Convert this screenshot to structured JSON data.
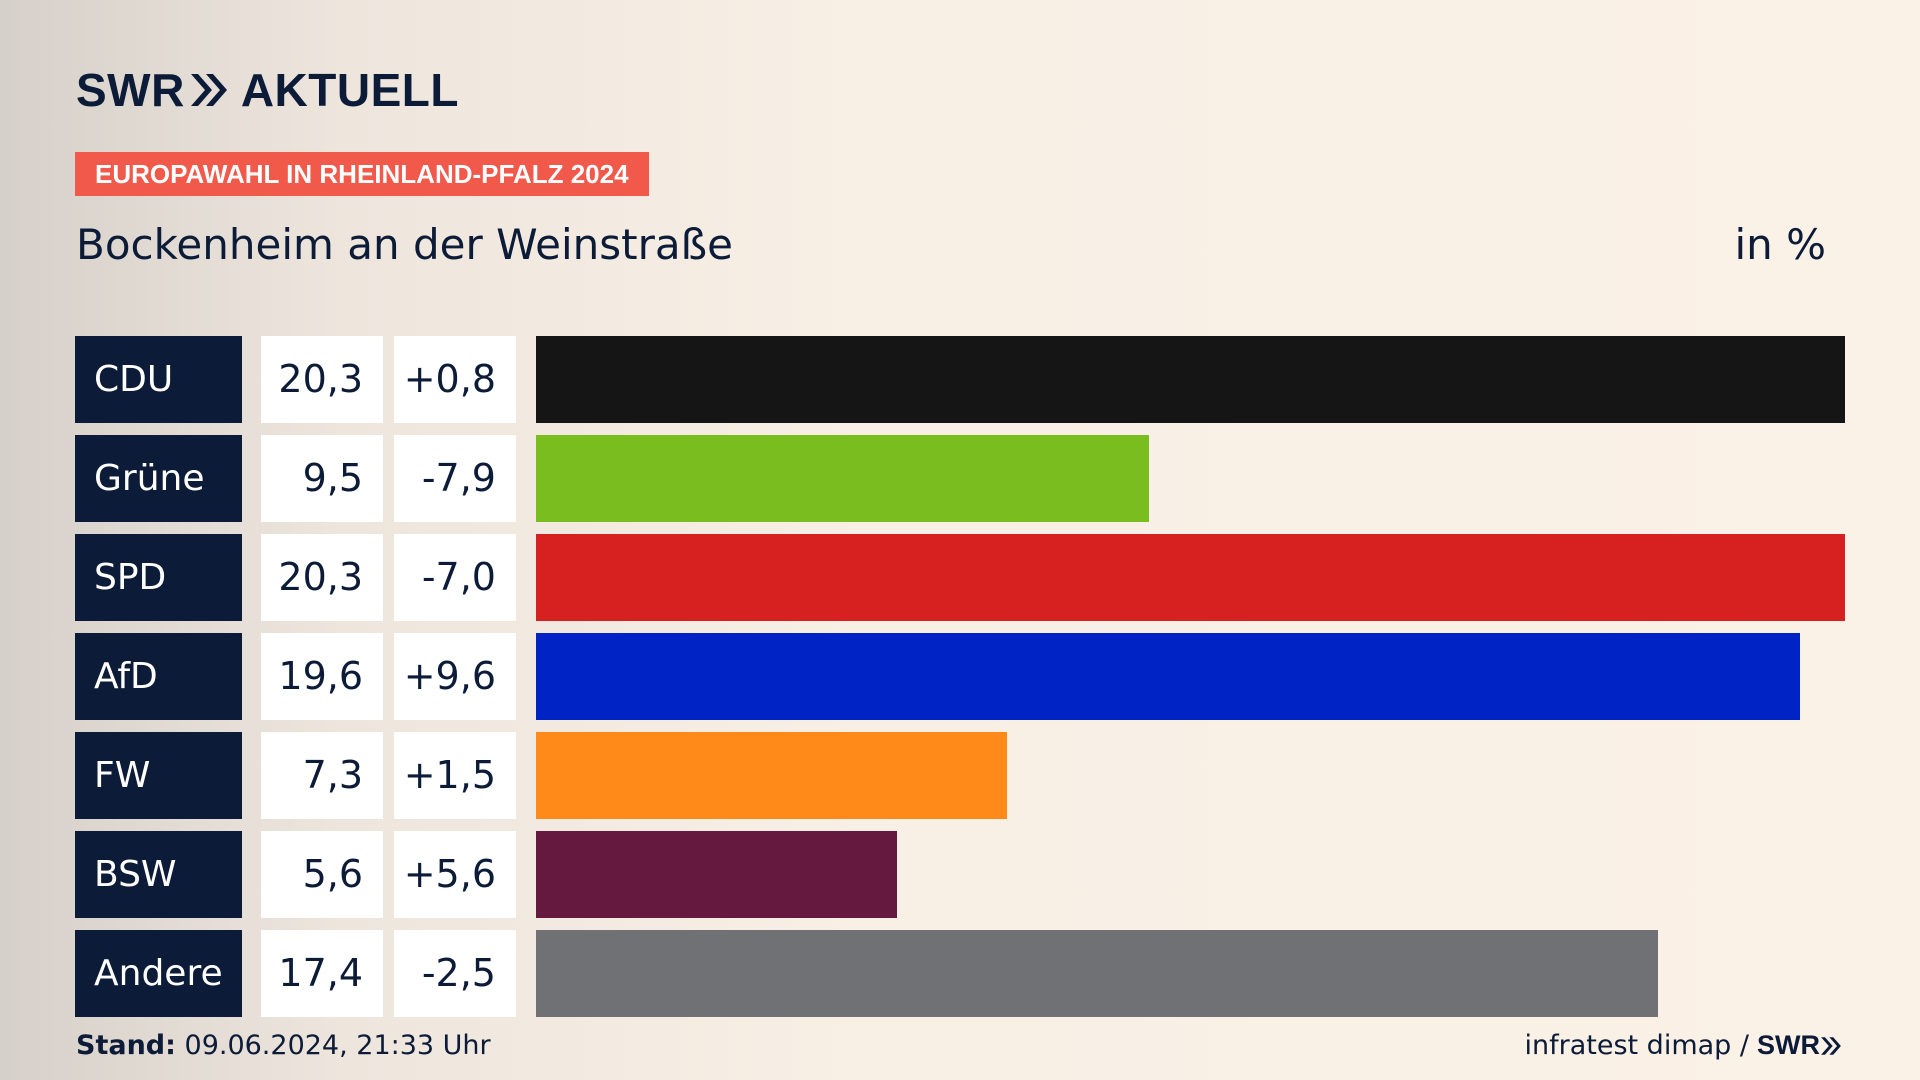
{
  "brand": {
    "name": "SWR",
    "product": "AKTUELL"
  },
  "kicker": "EUROPAWAHL IN RHEINLAND-PFALZ 2024",
  "title": "Bockenheim an der Weinstraße",
  "unit": "in %",
  "chart_data": {
    "type": "bar",
    "orientation": "horizontal",
    "title": "Bockenheim an der Weinstraße",
    "unit": "in %",
    "categories": [
      "CDU",
      "Grüne",
      "SPD",
      "AfD",
      "FW",
      "BSW",
      "Andere"
    ],
    "values": [
      20.3,
      9.5,
      20.3,
      19.6,
      7.3,
      5.6,
      17.4
    ],
    "values_label": [
      "20,3",
      "9,5",
      "20,3",
      "19,6",
      "7,3",
      "5,6",
      "17,4"
    ],
    "changes": [
      0.8,
      -7.9,
      -7.0,
      9.6,
      1.5,
      5.6,
      -2.5
    ],
    "changes_label": [
      "+0,8",
      "-7,9",
      "-7,0",
      "+9,6",
      "+1,5",
      "+5,6",
      "-2,5"
    ],
    "colors": [
      "#151515",
      "#79bd1f",
      "#d62120",
      "#0023c6",
      "#ff8a1a",
      "#65193f",
      "#707174"
    ],
    "xlim": [
      0,
      20.3
    ]
  },
  "footer": {
    "stand_label": "Stand:",
    "stand_value": "09.06.2024, 21:33 Uhr",
    "source": "infratest dimap /",
    "source_brand": "SWR"
  }
}
